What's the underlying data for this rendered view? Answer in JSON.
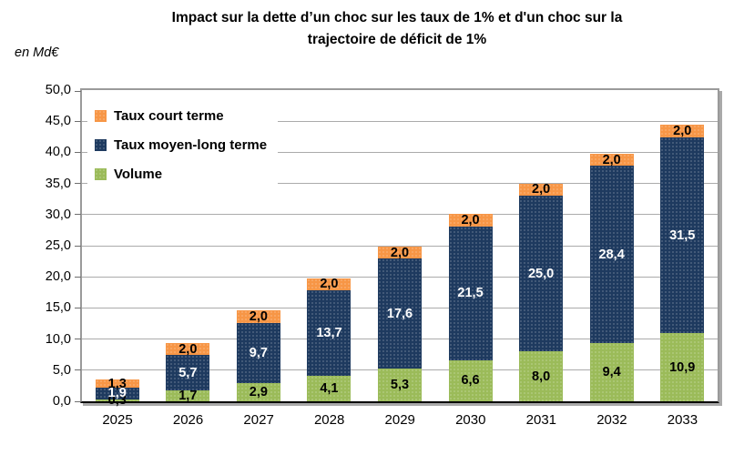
{
  "chart_data": {
    "type": "bar",
    "stacked": true,
    "title_lines": [
      "Impact sur la dette d’un choc sur les taux de 1% et d'un choc sur la",
      "trajectoire de déficit de 1%"
    ],
    "unit_label": "en Md€",
    "categories": [
      "2025",
      "2026",
      "2027",
      "2028",
      "2029",
      "2030",
      "2031",
      "2032",
      "2033"
    ],
    "series": [
      {
        "name": "Volume",
        "color": "#9BBB59",
        "label_color": "#000000",
        "values": [
          0.3,
          1.7,
          2.9,
          4.1,
          5.3,
          6.6,
          8.0,
          9.4,
          10.9
        ],
        "labels": [
          "0,3",
          "1,7",
          "2,9",
          "4,1",
          "5,3",
          "6,6",
          "8,0",
          "9,4",
          "10,9"
        ]
      },
      {
        "name": "Taux moyen-long terme",
        "color": "#1E3A5F",
        "label_color": "#FFFFFF",
        "values": [
          1.9,
          5.7,
          9.7,
          13.7,
          17.6,
          21.5,
          25.0,
          28.4,
          31.5
        ],
        "labels": [
          "1,9",
          "5,7",
          "9,7",
          "13,7",
          "17,6",
          "21,5",
          "25,0",
          "28,4",
          "31,5"
        ]
      },
      {
        "name": "Taux court terme",
        "color": "#F79646",
        "label_color": "#000000",
        "values": [
          1.3,
          2.0,
          2.0,
          2.0,
          2.0,
          2.0,
          2.0,
          2.0,
          2.0
        ],
        "labels": [
          "1,3",
          "2,0",
          "2,0",
          "2,0",
          "2,0",
          "2,0",
          "2,0",
          "2,0",
          "2,0"
        ]
      }
    ],
    "legend_order": [
      "Taux court terme",
      "Taux moyen-long terme",
      "Volume"
    ],
    "legend_position": "top-left-inside",
    "grid": true,
    "y_axis": {
      "min": 0,
      "max": 50,
      "step": 5,
      "tick_labels": [
        "0,0",
        "5,0",
        "10,0",
        "15,0",
        "20,0",
        "25,0",
        "30,0",
        "35,0",
        "40,0",
        "45,0",
        "50,0"
      ]
    }
  }
}
